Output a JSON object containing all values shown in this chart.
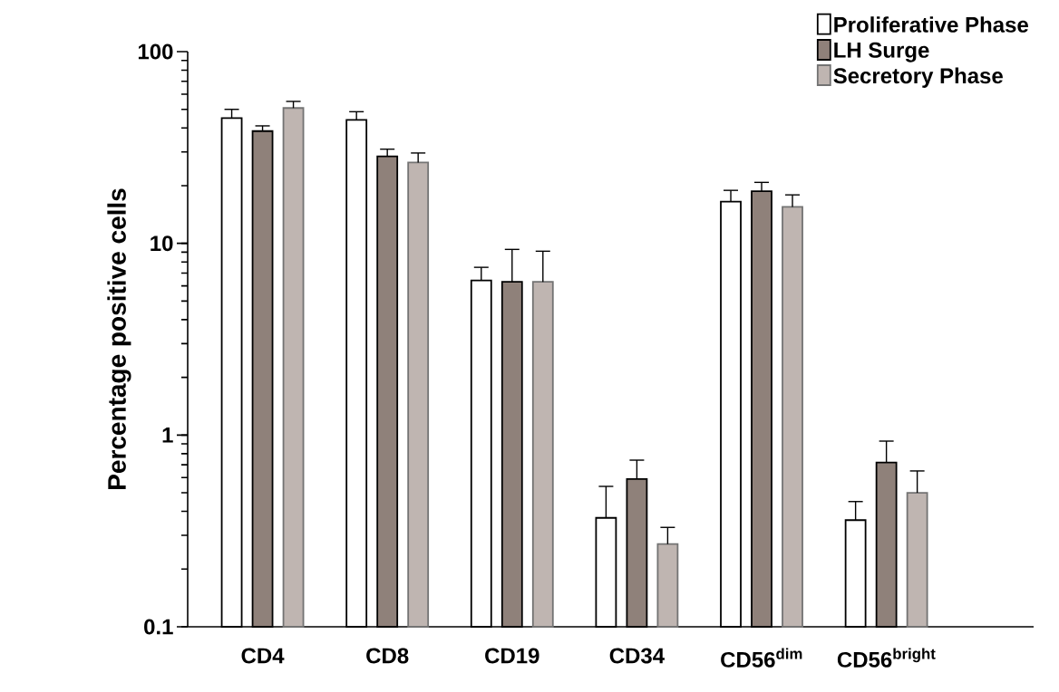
{
  "chart_data": {
    "type": "bar",
    "categories": [
      "CD4",
      "CD8",
      "CD19",
      "CD34",
      "CD56$^{dim}$",
      "CD56$^{bright}$"
    ],
    "ylabel": "Percentage positive cells",
    "log": "y",
    "ylim": [
      0.1,
      100
    ],
    "yticks": [
      0.1,
      1,
      10,
      100
    ],
    "legend": "top right",
    "series": [
      {
        "name": "Proliferative Phase",
        "color": "#ffffff",
        "values": [
          45,
          44,
          6.4,
          0.37,
          16.5,
          0.36
        ],
        "errors": [
          [
            45,
            50
          ],
          [
            44,
            48.6
          ],
          [
            6.4,
            7.5
          ],
          [
            0.37,
            0.54
          ],
          [
            16.5,
            18.9
          ],
          [
            0.36,
            0.45
          ]
        ]
      },
      {
        "name": "LH Surge",
        "color": "#8f817a",
        "values": [
          38.5,
          28.4,
          6.3,
          0.59,
          18.7,
          0.72
        ],
        "errors": [
          [
            38.5,
            41
          ],
          [
            28.4,
            31
          ],
          [
            6.3,
            9.3
          ],
          [
            0.59,
            0.74
          ],
          [
            18.7,
            20.8
          ],
          [
            0.72,
            0.93
          ]
        ]
      },
      {
        "name": "Secretory Phase",
        "color": "#bfb5b1",
        "values": [
          50.8,
          26.4,
          6.3,
          0.27,
          15.5,
          0.5
        ],
        "errors": [
          [
            50.8,
            55
          ],
          [
            26.4,
            29.6
          ],
          [
            6.3,
            9.1
          ],
          [
            0.27,
            0.33
          ],
          [
            15.5,
            17.9
          ],
          [
            0.5,
            0.65
          ]
        ]
      }
    ]
  }
}
